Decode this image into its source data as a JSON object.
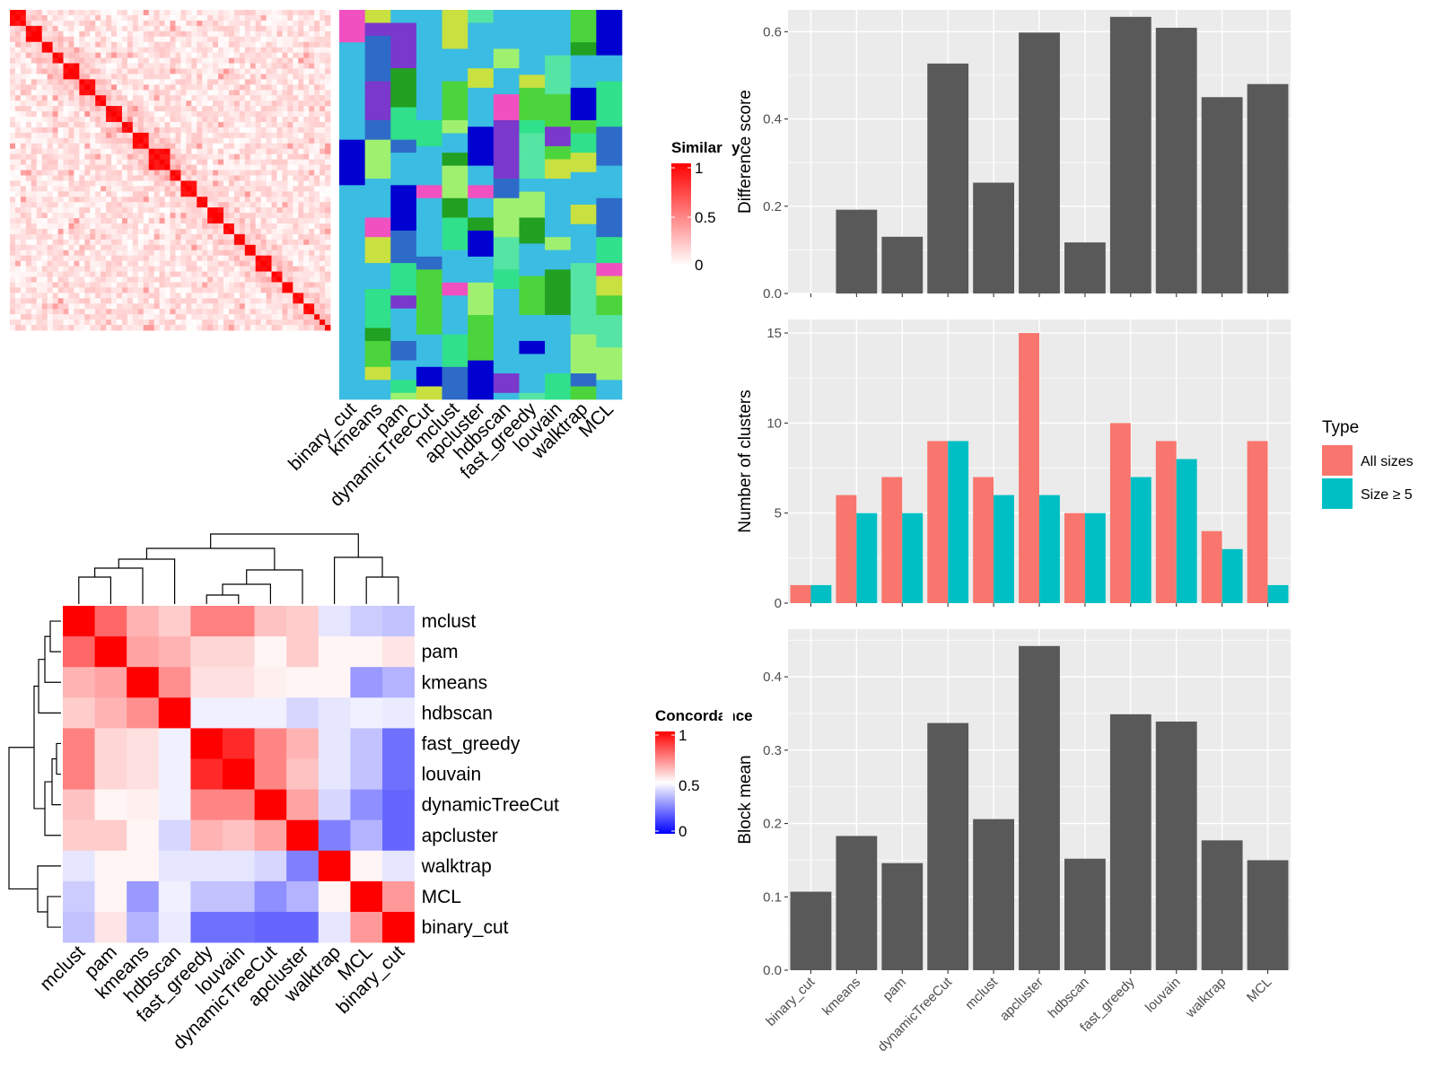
{
  "colors": {
    "panel_bg": "#EBEBEB",
    "grid": "#FFFFFF",
    "bar_dark": "#595959",
    "all_sizes": "#F8766D",
    "size5": "#00BFC4",
    "sim_high": "#FF0000",
    "sim_low": "#FFFFFF",
    "conc_high": "#FF0000",
    "conc_mid": "#FFFFFF",
    "conc_low": "#0000FF"
  },
  "similarity_heatmap": {
    "legend_title": "Similarity",
    "legend_ticks": [
      "1",
      "0.5",
      "0"
    ],
    "n_terms": 60,
    "block_sizes": [
      3,
      3,
      2,
      2,
      3,
      3,
      2,
      3,
      2,
      3,
      4,
      2,
      3,
      2,
      3,
      2,
      2,
      2,
      3,
      2,
      2,
      2,
      2,
      1,
      1,
      1,
      1
    ]
  },
  "cluster_annotation": {
    "methods": [
      "binary_cut",
      "kmeans",
      "pam",
      "dynamicTreeCut",
      "mclust",
      "apcluster",
      "hdbscan",
      "fast_greedy",
      "louvain",
      "walktrap",
      "MCL"
    ],
    "background": "#3BBCE2",
    "palette": [
      "#3BBCE2",
      "#55E4A4",
      "#22A022",
      "#F050C0",
      "#4CD43C",
      "#A0F070",
      "#0000D0",
      "#7A38CC",
      "#2E6BC8",
      "#C8E040",
      "#30E08A"
    ]
  },
  "concordance_heatmap": {
    "legend_title": "Concordance",
    "legend_ticks": [
      "1",
      "0.5",
      "0"
    ],
    "methods": [
      "mclust",
      "pam",
      "kmeans",
      "hdbscan",
      "fast_greedy",
      "louvain",
      "dynamicTreeCut",
      "apcluster",
      "walktrap",
      "MCL",
      "binary_cut"
    ],
    "matrix": [
      [
        1.0,
        0.8,
        0.65,
        0.6,
        0.75,
        0.75,
        0.62,
        0.6,
        0.45,
        0.4,
        0.38
      ],
      [
        0.8,
        1.0,
        0.68,
        0.65,
        0.58,
        0.58,
        0.52,
        0.6,
        0.52,
        0.52,
        0.55
      ],
      [
        0.65,
        0.68,
        1.0,
        0.72,
        0.56,
        0.56,
        0.53,
        0.52,
        0.52,
        0.3,
        0.35
      ],
      [
        0.6,
        0.65,
        0.72,
        1.0,
        0.47,
        0.47,
        0.47,
        0.42,
        0.45,
        0.47,
        0.46
      ],
      [
        0.75,
        0.58,
        0.56,
        0.47,
        1.0,
        0.92,
        0.74,
        0.65,
        0.45,
        0.38,
        0.22
      ],
      [
        0.75,
        0.58,
        0.56,
        0.47,
        0.92,
        1.0,
        0.74,
        0.62,
        0.45,
        0.38,
        0.22
      ],
      [
        0.62,
        0.52,
        0.53,
        0.47,
        0.74,
        0.74,
        1.0,
        0.68,
        0.42,
        0.28,
        0.2
      ],
      [
        0.6,
        0.6,
        0.52,
        0.42,
        0.65,
        0.62,
        0.68,
        1.0,
        0.25,
        0.35,
        0.2
      ],
      [
        0.45,
        0.52,
        0.52,
        0.45,
        0.45,
        0.45,
        0.42,
        0.25,
        1.0,
        0.52,
        0.45
      ],
      [
        0.4,
        0.52,
        0.3,
        0.47,
        0.38,
        0.38,
        0.28,
        0.35,
        0.52,
        1.0,
        0.7
      ],
      [
        0.38,
        0.55,
        0.35,
        0.46,
        0.22,
        0.22,
        0.2,
        0.2,
        0.45,
        0.7,
        1.0
      ]
    ]
  },
  "chart_data": [
    {
      "type": "bar",
      "categories": [
        "binary_cut",
        "kmeans",
        "pam",
        "dynamicTreeCut",
        "mclust",
        "apcluster",
        "hdbscan",
        "fast_greedy",
        "louvain",
        "walktrap",
        "MCL"
      ],
      "values": [
        0.0,
        0.192,
        0.13,
        0.527,
        0.254,
        0.598,
        0.117,
        0.634,
        0.609,
        0.45,
        0.48
      ],
      "title": "",
      "xlabel": "",
      "ylabel": "Difference score",
      "ylim": [
        0,
        0.65
      ],
      "yticks": [
        "0.0",
        "0.2",
        "0.4",
        "0.6"
      ]
    },
    {
      "type": "bar",
      "categories": [
        "binary_cut",
        "kmeans",
        "pam",
        "dynamicTreeCut",
        "mclust",
        "apcluster",
        "hdbscan",
        "fast_greedy",
        "louvain",
        "walktrap",
        "MCL"
      ],
      "series": [
        {
          "name": "All sizes",
          "values": [
            1,
            6,
            7,
            9,
            7,
            15,
            5,
            10,
            9,
            4,
            9
          ]
        },
        {
          "name": "Size ≥ 5",
          "values": [
            1,
            5,
            5,
            9,
            6,
            6,
            5,
            7,
            8,
            3,
            1
          ]
        }
      ],
      "title": "",
      "xlabel": "",
      "ylabel": "Number of clusters",
      "ylim": [
        0,
        15.75
      ],
      "yticks": [
        "0",
        "5",
        "10",
        "15"
      ],
      "legend_title": "Type",
      "legend_position": "right"
    },
    {
      "type": "bar",
      "categories": [
        "binary_cut",
        "kmeans",
        "pam",
        "dynamicTreeCut",
        "mclust",
        "apcluster",
        "hdbscan",
        "fast_greedy",
        "louvain",
        "walktrap",
        "MCL"
      ],
      "values": [
        0.107,
        0.183,
        0.146,
        0.337,
        0.206,
        0.442,
        0.152,
        0.349,
        0.339,
        0.177,
        0.15
      ],
      "title": "",
      "xlabel": "",
      "ylabel": "Block mean",
      "ylim": [
        0,
        0.465
      ],
      "yticks": [
        "0.0",
        "0.1",
        "0.2",
        "0.3",
        "0.4"
      ]
    }
  ]
}
